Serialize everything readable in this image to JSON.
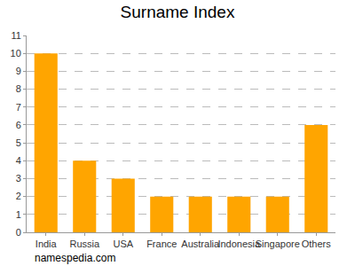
{
  "chart_data": {
    "type": "bar",
    "title": "Surname Index",
    "categories": [
      "India",
      "Russia",
      "USA",
      "France",
      "Australia",
      "Indonesia",
      "Singapore",
      "Others"
    ],
    "values": [
      10,
      4,
      3,
      2,
      2,
      2,
      2,
      6
    ],
    "color": "#ffa500",
    "ylim": [
      0,
      11
    ],
    "yticks": [
      0,
      1,
      2,
      3,
      4,
      5,
      6,
      7,
      8,
      9,
      10,
      11
    ],
    "grid": true,
    "annotations": [
      "namespedia.com"
    ]
  }
}
